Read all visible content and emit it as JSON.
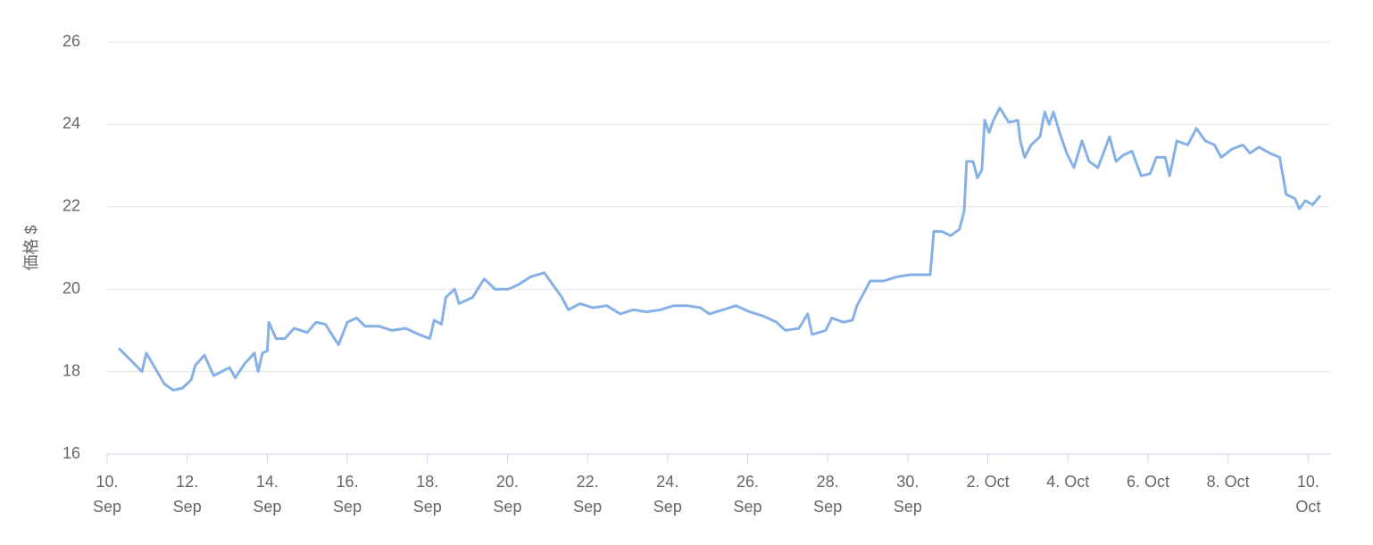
{
  "chart_data": {
    "type": "line",
    "y_label": "価格 $",
    "x": [
      0.31,
      0.87,
      0.98,
      1.43,
      1.65,
      1.88,
      2.1,
      2.2,
      2.43,
      2.66,
      3.06,
      3.2,
      3.44,
      3.68,
      3.77,
      3.88,
      4.0,
      4.04,
      4.22,
      4.44,
      4.67,
      5.0,
      5.22,
      5.45,
      5.78,
      6.0,
      6.23,
      6.45,
      6.79,
      7.12,
      7.46,
      7.79,
      8.06,
      8.17,
      8.35,
      8.46,
      8.68,
      8.79,
      9.13,
      9.42,
      9.69,
      10.02,
      10.25,
      10.58,
      10.92,
      11.14,
      11.36,
      11.52,
      11.81,
      12.14,
      12.48,
      12.81,
      13.15,
      13.48,
      13.82,
      14.15,
      14.49,
      14.82,
      15.04,
      15.38,
      15.71,
      16.05,
      16.38,
      16.72,
      16.94,
      17.28,
      17.5,
      17.61,
      17.95,
      18.1,
      18.39,
      18.62,
      18.73,
      18.95,
      19.06,
      19.4,
      19.73,
      20.07,
      20.4,
      20.56,
      20.65,
      20.85,
      21.07,
      21.29,
      21.41,
      21.47,
      21.63,
      21.74,
      21.85,
      21.92,
      22.03,
      22.14,
      22.3,
      22.52,
      22.75,
      22.81,
      22.92,
      23.08,
      23.3,
      23.42,
      23.53,
      23.64,
      23.79,
      23.97,
      24.15,
      24.35,
      24.53,
      24.75,
      25.04,
      25.2,
      25.38,
      25.6,
      25.83,
      26.05,
      26.21,
      26.43,
      26.54,
      26.72,
      26.99,
      27.21,
      27.43,
      27.66,
      27.83,
      28.1,
      28.37,
      28.55,
      28.77,
      29.04,
      29.29,
      29.45,
      29.67,
      29.78,
      29.93,
      30.11,
      30.29
    ],
    "series": [
      {
        "color": "#86b1e6",
        "values": [
          18.55,
          18.0,
          18.45,
          17.7,
          17.55,
          17.6,
          17.8,
          18.15,
          18.4,
          17.9,
          18.1,
          17.85,
          18.2,
          18.45,
          18.0,
          18.45,
          18.5,
          19.2,
          18.8,
          18.8,
          19.05,
          18.95,
          19.2,
          19.15,
          18.65,
          19.2,
          19.3,
          19.1,
          19.1,
          19.0,
          19.05,
          18.9,
          18.8,
          19.25,
          19.15,
          19.8,
          20.0,
          19.65,
          19.8,
          20.25,
          20.0,
          20.0,
          20.1,
          20.3,
          20.4,
          20.1,
          19.8,
          19.5,
          19.65,
          19.55,
          19.6,
          19.4,
          19.5,
          19.45,
          19.5,
          19.6,
          19.6,
          19.55,
          19.4,
          19.5,
          19.6,
          19.45,
          19.35,
          19.2,
          19.0,
          19.05,
          19.4,
          18.9,
          19.0,
          19.3,
          19.2,
          19.25,
          19.6,
          20.0,
          20.2,
          20.2,
          20.3,
          20.35,
          20.35,
          20.35,
          21.4,
          21.4,
          21.3,
          21.45,
          21.9,
          23.1,
          23.1,
          22.7,
          22.9,
          24.1,
          23.8,
          24.1,
          24.4,
          24.05,
          24.1,
          23.6,
          23.2,
          23.5,
          23.7,
          24.3,
          24.0,
          24.3,
          23.8,
          23.3,
          22.95,
          23.6,
          23.1,
          22.95,
          23.7,
          23.1,
          23.25,
          23.35,
          22.75,
          22.8,
          23.2,
          23.2,
          22.75,
          23.6,
          23.5,
          23.9,
          23.6,
          23.5,
          23.2,
          23.4,
          23.5,
          23.3,
          23.45,
          23.3,
          23.2,
          22.3,
          22.2,
          21.95,
          22.15,
          22.05,
          22.25
        ]
      }
    ],
    "xlim": [
      0,
      30.55
    ],
    "xticks": [
      {
        "value": 0,
        "label": "10. Sep"
      },
      {
        "value": 2,
        "label": "12. Sep"
      },
      {
        "value": 4,
        "label": "14. Sep"
      },
      {
        "value": 6,
        "label": "16. Sep"
      },
      {
        "value": 8,
        "label": "18. Sep"
      },
      {
        "value": 10,
        "label": "20. Sep"
      },
      {
        "value": 12,
        "label": "22. Sep"
      },
      {
        "value": 14,
        "label": "24. Sep"
      },
      {
        "value": 16,
        "label": "26. Sep"
      },
      {
        "value": 18,
        "label": "28. Sep"
      },
      {
        "value": 20,
        "label": "30. Sep"
      },
      {
        "value": 22,
        "label": "2. Oct"
      },
      {
        "value": 24,
        "label": "4. Oct"
      },
      {
        "value": 26,
        "label": "6. Oct"
      },
      {
        "value": 28,
        "label": "8. Oct"
      },
      {
        "value": 30,
        "label": "10. Oct"
      }
    ],
    "ylim": [
      16,
      26
    ],
    "yticks": [
      16,
      18,
      20,
      22,
      24,
      26
    ],
    "grid": true
  }
}
